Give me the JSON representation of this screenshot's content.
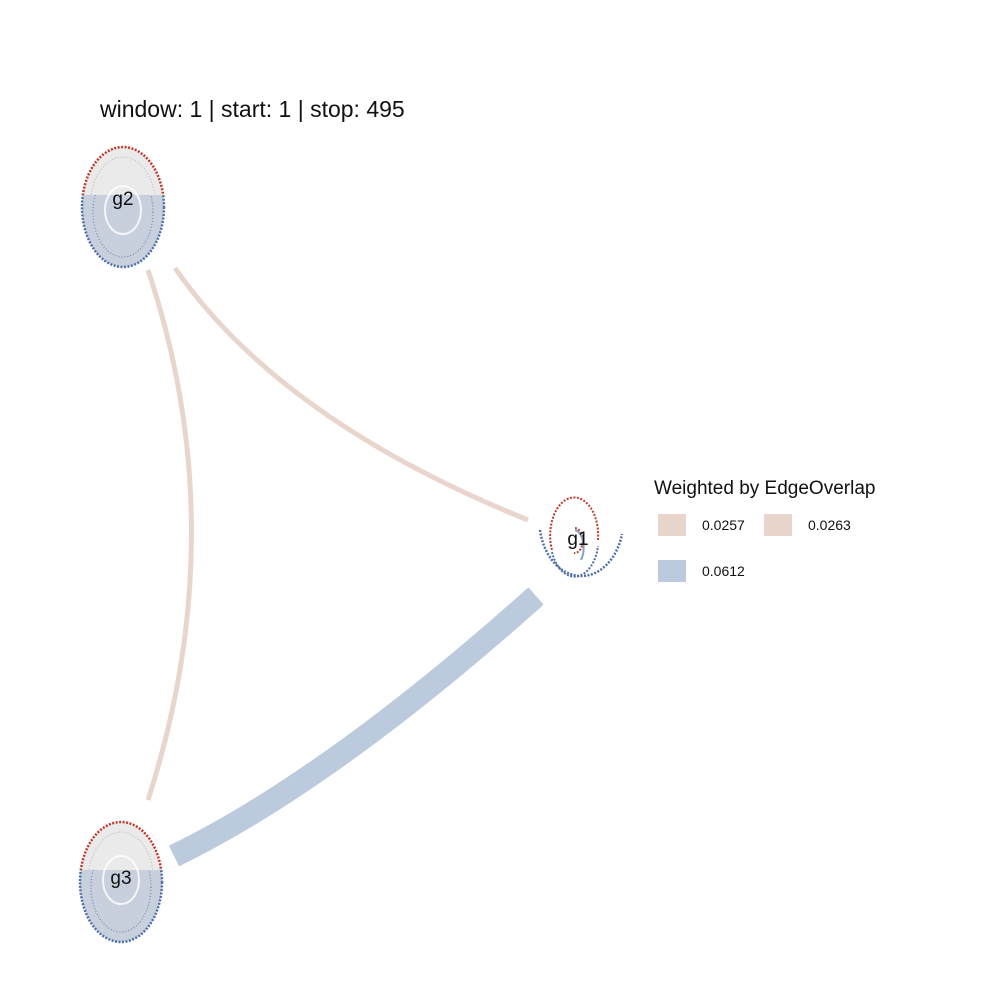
{
  "title": "window: 1 | start: 1 | stop: 495",
  "nodes": [
    {
      "id": "g1",
      "label": "g1"
    },
    {
      "id": "g2",
      "label": "g2"
    },
    {
      "id": "g3",
      "label": "g3"
    }
  ],
  "edges": [
    {
      "from": "g1",
      "to": "g2",
      "weight": 0.0263,
      "color": "#e8d6cd"
    },
    {
      "from": "g2",
      "to": "g3",
      "weight": 0.0257,
      "color": "#e8d6cd"
    },
    {
      "from": "g1",
      "to": "g3",
      "weight": 0.0612,
      "color": "#bccadd"
    }
  ],
  "legend": {
    "title": "Weighted by EdgeOverlap",
    "items": [
      {
        "label": "0.0257",
        "color": "#e8d6cd"
      },
      {
        "label": "0.0263",
        "color": "#e8d6cd"
      },
      {
        "label": "0.0612",
        "color": "#bccadd"
      }
    ]
  },
  "colors": {
    "edge_low": "#e8d6cd",
    "edge_high": "#bccadd",
    "inner_red": "#c0392b",
    "inner_blue": "#4e6fa8",
    "inner_gray": "#bdbdbd"
  }
}
